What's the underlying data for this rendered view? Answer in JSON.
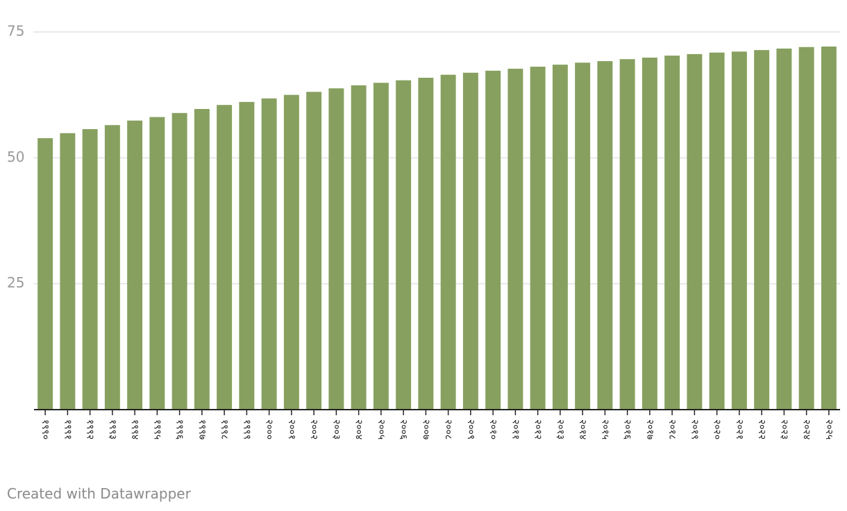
{
  "chart_data": {
    "type": "bar",
    "categories": [
      "१९९०",
      "१९९१",
      "१९९२",
      "१९९३",
      "१९९४",
      "१९९५",
      "१९९६",
      "१९९७",
      "१९९८",
      "१९९९",
      "२०००",
      "२००१",
      "२००२",
      "२००३",
      "२००४",
      "२००५",
      "२००६",
      "२००७",
      "२००८",
      "२००९",
      "२०१०",
      "२०११",
      "२०१२",
      "२०१३",
      "२०१४",
      "२०१५",
      "२०१६",
      "२०१७",
      "२०१८",
      "२०१९",
      "२०२०",
      "२०२१",
      "२०२२",
      "२०२३",
      "२०२४",
      "२०२५"
    ],
    "values": [
      53.9,
      54.9,
      55.7,
      56.5,
      57.4,
      58.1,
      58.9,
      59.7,
      60.5,
      61.1,
      61.8,
      62.5,
      63.1,
      63.8,
      64.4,
      64.9,
      65.4,
      65.9,
      66.5,
      66.9,
      67.3,
      67.7,
      68.1,
      68.5,
      68.9,
      69.2,
      69.6,
      69.9,
      70.3,
      70.6,
      70.9,
      71.1,
      71.4,
      71.7,
      72.0,
      72.1
    ],
    "color": "#87a05f",
    "ylim": [
      0,
      75
    ],
    "yticks": [
      25,
      50,
      75
    ],
    "grid": true,
    "footer": "Created with Datawrapper"
  }
}
